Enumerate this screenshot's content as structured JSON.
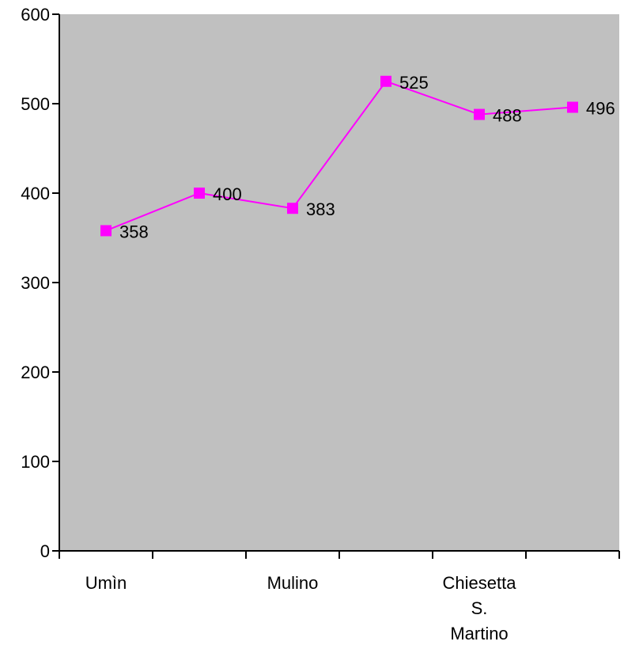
{
  "chart_data": {
    "type": "line",
    "title": "",
    "xlabel": "",
    "ylabel": "",
    "ylim": [
      0,
      600
    ],
    "yticks": [
      0,
      100,
      200,
      300,
      400,
      500,
      600
    ],
    "grid": false,
    "legend": "none",
    "categories": [
      "Umìn",
      "",
      "Mulino",
      "",
      "Chiesetta S. Martino",
      ""
    ],
    "category_label_lines": [
      [
        "Umìn"
      ],
      [],
      [
        "Mulino"
      ],
      [],
      [
        "Chiesetta",
        "S.",
        "Martino"
      ],
      []
    ],
    "series": [
      {
        "values": [
          358,
          400,
          383,
          525,
          488,
          496
        ],
        "color": "#ff00ff",
        "marker": "square"
      }
    ],
    "plot_background": "#c0c0c0"
  }
}
